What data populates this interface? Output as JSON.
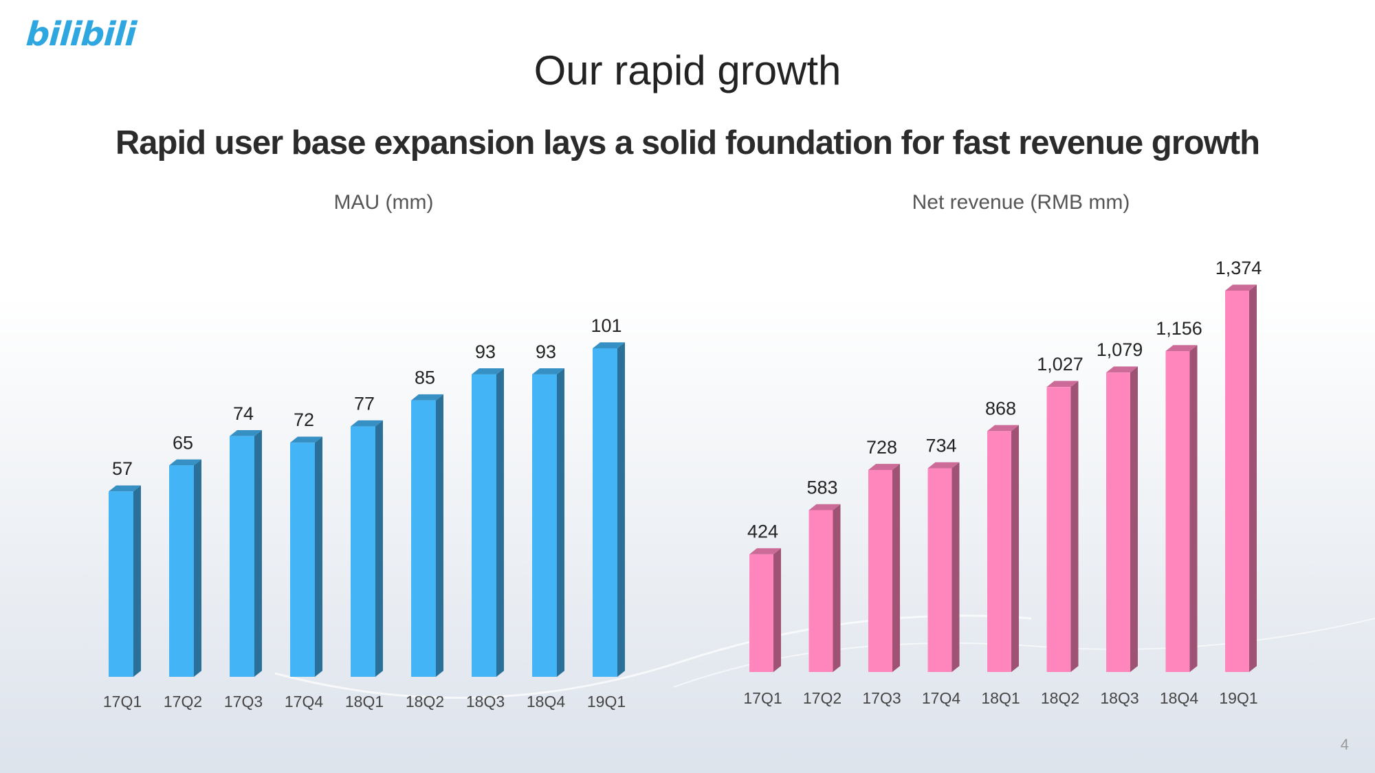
{
  "brand": {
    "logo_text": "bilibili",
    "accent": "#2ea7e0"
  },
  "slide": {
    "title": "Our rapid growth",
    "subtitle": "Rapid user base expansion lays a solid foundation for fast revenue growth",
    "page_number": "4"
  },
  "chart_data": [
    {
      "type": "bar",
      "title": "MAU (mm)",
      "categories": [
        "17Q1",
        "17Q2",
        "17Q3",
        "17Q4",
        "18Q1",
        "18Q2",
        "18Q3",
        "18Q4",
        "19Q1"
      ],
      "values": [
        57,
        65,
        74,
        72,
        77,
        85,
        93,
        93,
        101
      ],
      "labels": [
        "57",
        "65",
        "74",
        "72",
        "77",
        "85",
        "93",
        "93",
        "101"
      ],
      "xlabel": "",
      "ylabel": "",
      "ylim": [
        0,
        101
      ],
      "grid": false,
      "color": "#43b4f5"
    },
    {
      "type": "bar",
      "title": "Net revenue (RMB mm)",
      "categories": [
        "17Q1",
        "17Q2",
        "17Q3",
        "17Q4",
        "18Q1",
        "18Q2",
        "18Q3",
        "18Q4",
        "19Q1"
      ],
      "values": [
        424,
        583,
        728,
        734,
        868,
        1027,
        1079,
        1156,
        1374
      ],
      "labels": [
        "424",
        "583",
        "728",
        "734",
        "868",
        "1,027",
        "1,079",
        "1,156",
        "1,374"
      ],
      "xlabel": "",
      "ylabel": "",
      "ylim": [
        0,
        1374
      ],
      "grid": false,
      "color": "#ff86bd"
    }
  ]
}
